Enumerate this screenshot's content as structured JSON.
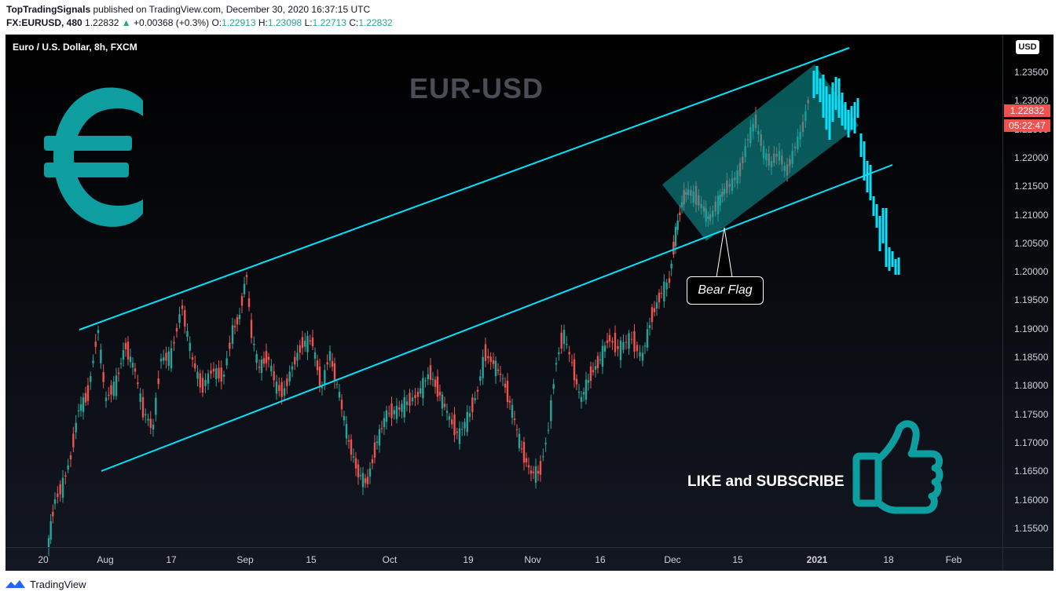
{
  "header": {
    "author": "TopTradingSignals",
    "published_text": "published on TradingView.com, December 30, 2020 16:37:15 UTC",
    "symbol": "FX:EURUSD, 480",
    "last": "1.22832",
    "change": "+0.00368 (+0.3%)",
    "open_label": "O:",
    "open": "1.22913",
    "high_label": "H:",
    "high": "1.23098",
    "low_label": "L:",
    "low": "1.22713",
    "close_label": "C:",
    "close": "1.22832"
  },
  "pane": {
    "title": "Euro / U.S. Dollar, 8h, FXCM",
    "currency_tag": "USD",
    "chart_title": "EUR-USD",
    "annotation": "Bear Flag",
    "cta": "LIKE and SUBSCRIBE"
  },
  "price_axis": {
    "ticks": [
      "1.23500",
      "1.23000",
      "1.22500",
      "1.22000",
      "1.21500",
      "1.21000",
      "1.20500",
      "1.20000",
      "1.19500",
      "1.19000",
      "1.18500",
      "1.18000",
      "1.17500",
      "1.17000",
      "1.16500",
      "1.16000",
      "1.15500"
    ],
    "last_price": "1.22832",
    "countdown": "05:22:47"
  },
  "time_axis": {
    "ticks": [
      "20",
      "Aug",
      "17",
      "Sep",
      "15",
      "Oct",
      "19",
      "Nov",
      "16",
      "Dec",
      "15",
      "2021",
      "18",
      "Feb"
    ]
  },
  "footer": {
    "brand": "TradingView"
  },
  "colors": {
    "up": "#26a69a",
    "down": "#ef5350",
    "trendline": "#00e5ff",
    "accent": "#0e9ea0",
    "projection": "#00e5ff"
  },
  "icons": [
    "euro-icon",
    "thumbs-up-icon",
    "tradingview-logo-icon",
    "up-arrow-icon"
  ]
}
